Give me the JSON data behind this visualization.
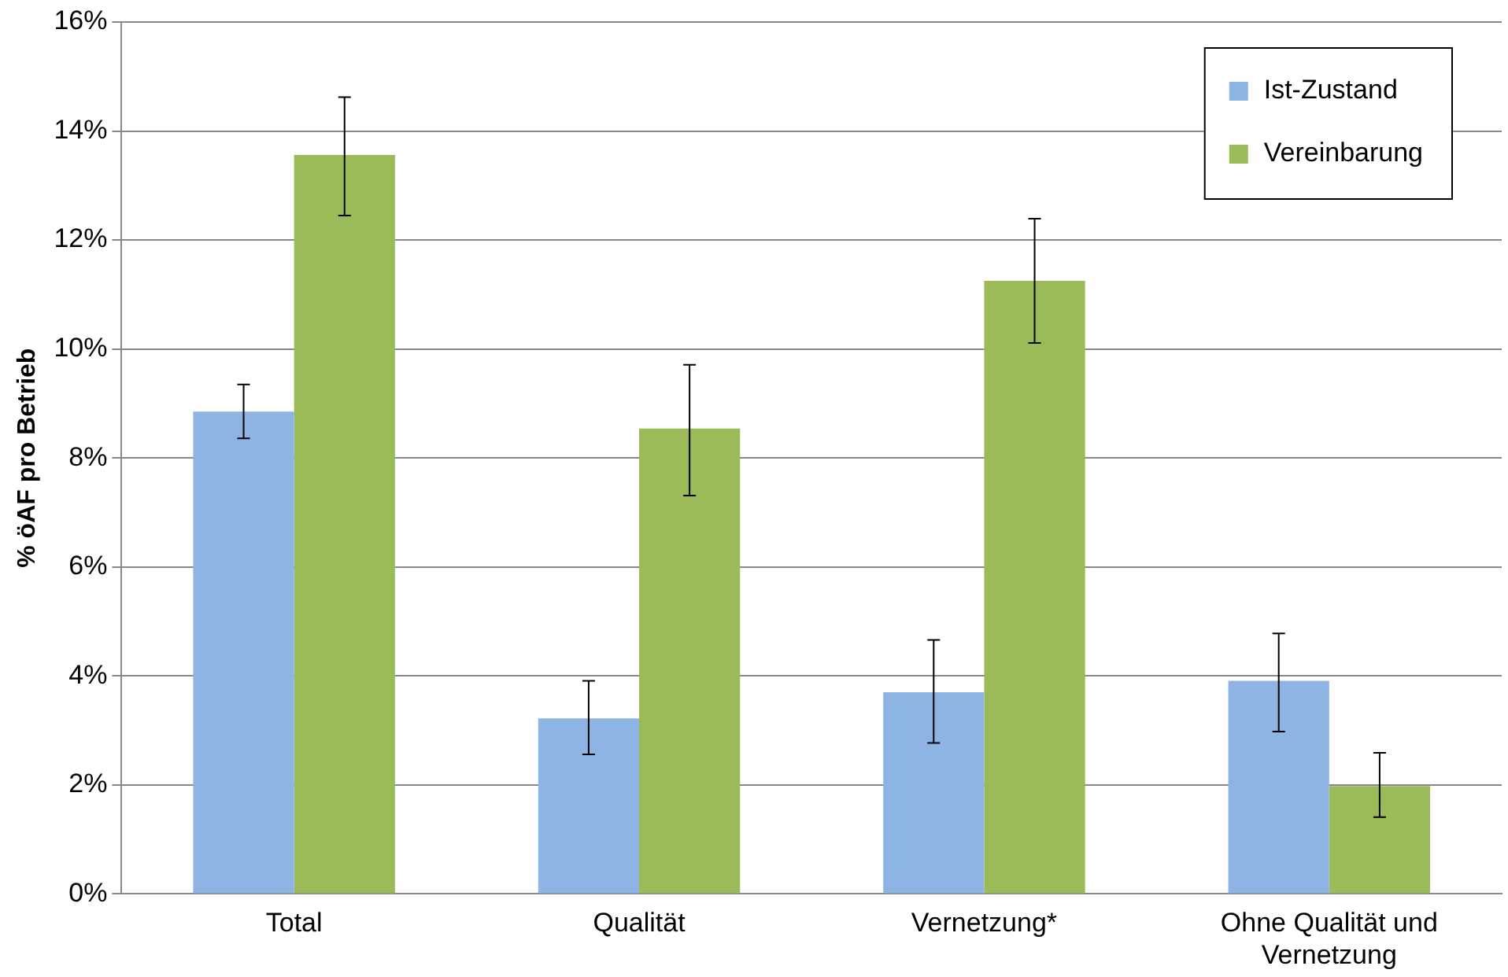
{
  "chart_data": {
    "type": "bar",
    "ylabel": "% öAF pro Betrieb",
    "categories": [
      "Total",
      "Qualität",
      "Vernetzung*",
      "Ohne Qualität und Vernetzung"
    ],
    "series": [
      {
        "name": "Ist-Zustand",
        "color": "#8eb4e3",
        "values": [
          8.85,
          3.22,
          3.7,
          3.91
        ],
        "errors": [
          [
            8.36,
            9.35
          ],
          [
            2.56,
            3.91
          ],
          [
            2.77,
            4.66
          ],
          [
            2.98,
            4.78
          ]
        ]
      },
      {
        "name": "Vereinbarung",
        "color": "#9bbb59",
        "values": [
          13.56,
          8.54,
          11.25,
          1.98
        ],
        "errors": [
          [
            12.45,
            14.62
          ],
          [
            7.31,
            9.71
          ],
          [
            10.11,
            12.39
          ],
          [
            1.41,
            2.59
          ]
        ]
      }
    ],
    "ylim": [
      0,
      16
    ],
    "yticks": [
      {
        "value": 0,
        "label": "0%"
      },
      {
        "value": 2,
        "label": "2%"
      },
      {
        "value": 4,
        "label": "4%"
      },
      {
        "value": 6,
        "label": "6%"
      },
      {
        "value": 8,
        "label": "8%"
      },
      {
        "value": 10,
        "label": "10%"
      },
      {
        "value": 12,
        "label": "12%"
      },
      {
        "value": 14,
        "label": "14%"
      },
      {
        "value": 16,
        "label": "16%"
      }
    ],
    "grid": "y",
    "legend": "top right"
  }
}
